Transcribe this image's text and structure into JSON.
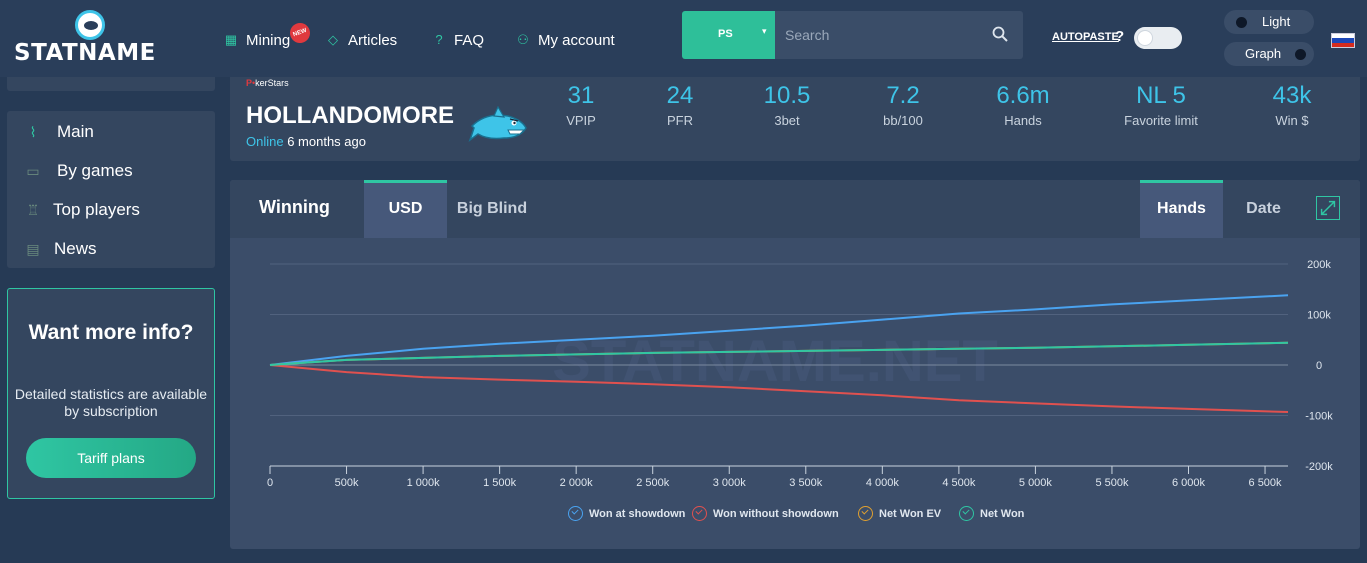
{
  "header": {
    "logo_text": "STATNAME",
    "nav": [
      {
        "label": "Mining",
        "badge": "NEW"
      },
      {
        "label": "Articles"
      },
      {
        "label": "FAQ"
      },
      {
        "label": "My account"
      }
    ],
    "room_select": "PS",
    "search_placeholder": "Search",
    "autopaste_label": "AUTOPASTE",
    "autopaste_help": "?",
    "theme_light": "Light",
    "theme_graph": "Graph"
  },
  "sidebar": {
    "menu": [
      {
        "label": "Main",
        "icon": "pulse-icon"
      },
      {
        "label": "By games",
        "icon": "gamepad-icon"
      },
      {
        "label": "Top players",
        "icon": "trophy-icon"
      },
      {
        "label": "News",
        "icon": "newspaper-icon"
      }
    ],
    "promo": {
      "title": "Want more info?",
      "text": "Detailed statistics are available by subscription",
      "button": "Tariff plans"
    }
  },
  "player": {
    "room_prefix": "P",
    "room_suffix": "kerStars",
    "name": "HOLLANDOMORE",
    "status_online": "Online",
    "status_time": "6 months ago",
    "stats": [
      {
        "value": "31",
        "label": "VPIP"
      },
      {
        "value": "24",
        "label": "PFR"
      },
      {
        "value": "10.5",
        "label": "3bet"
      },
      {
        "value": "7.2",
        "label": "bb/100"
      },
      {
        "value": "6.6m",
        "label": "Hands"
      },
      {
        "value": "NL 5",
        "label": "Favorite limit"
      },
      {
        "value": "43k",
        "label": "Win $"
      }
    ]
  },
  "chart_panel": {
    "title": "Winning",
    "tabs_currency": [
      "USD",
      "Big Blind"
    ],
    "active_currency": "USD",
    "tabs_axis": [
      "Hands",
      "Date"
    ],
    "active_axis": "Hands",
    "watermark": "STATNAME.NET"
  },
  "colors": {
    "accent": "#2fc6a3",
    "won_showdown": "#4aa3f0",
    "won_without_showdown": "#e0514f",
    "net_won_ev": "#e0a030",
    "net_won": "#2fc6a3"
  },
  "chart_data": {
    "type": "line",
    "xlabel": "",
    "ylabel": "",
    "xlim": [
      0,
      6650000
    ],
    "ylim": [
      -200000,
      200000
    ],
    "x_ticks": [
      0,
      500000,
      1000000,
      1500000,
      2000000,
      2500000,
      3000000,
      3500000,
      4000000,
      4500000,
      5000000,
      5500000,
      6000000,
      6500000
    ],
    "x_tick_labels": [
      "0",
      "500k",
      "1 000k",
      "1 500k",
      "2 000k",
      "2 500k",
      "3 000k",
      "3 500k",
      "4 000k",
      "4 500k",
      "5 000k",
      "5 500k",
      "6 000k",
      "6 500k"
    ],
    "y_ticks": [
      200000,
      100000,
      0,
      -100000,
      -200000
    ],
    "y_tick_labels": [
      "200k",
      "100k",
      "0",
      "-100k",
      "-200k"
    ],
    "legend_position": "bottom",
    "grid": true,
    "x": [
      0,
      500000,
      1000000,
      1500000,
      2000000,
      2500000,
      3000000,
      3500000,
      4000000,
      4500000,
      5000000,
      5500000,
      6000000,
      6650000
    ],
    "series": [
      {
        "name": "Won at showdown",
        "values": [
          0,
          18000,
          32000,
          42000,
          50000,
          58000,
          68000,
          78000,
          90000,
          102000,
          110000,
          120000,
          128000,
          138000
        ]
      },
      {
        "name": "Won without showdown",
        "values": [
          0,
          -14000,
          -24000,
          -29000,
          -33000,
          -38000,
          -44000,
          -52000,
          -60000,
          -70000,
          -76000,
          -82000,
          -87000,
          -93000
        ]
      },
      {
        "name": "Net Won EV",
        "values": [
          0,
          10000,
          14000,
          18000,
          21000,
          24000,
          26000,
          28000,
          30000,
          32000,
          34000,
          37000,
          40000,
          44000
        ]
      },
      {
        "name": "Net Won",
        "values": [
          0,
          10000,
          14000,
          18000,
          21000,
          24000,
          26000,
          28000,
          30000,
          32000,
          34000,
          37000,
          40000,
          44000
        ]
      }
    ]
  }
}
